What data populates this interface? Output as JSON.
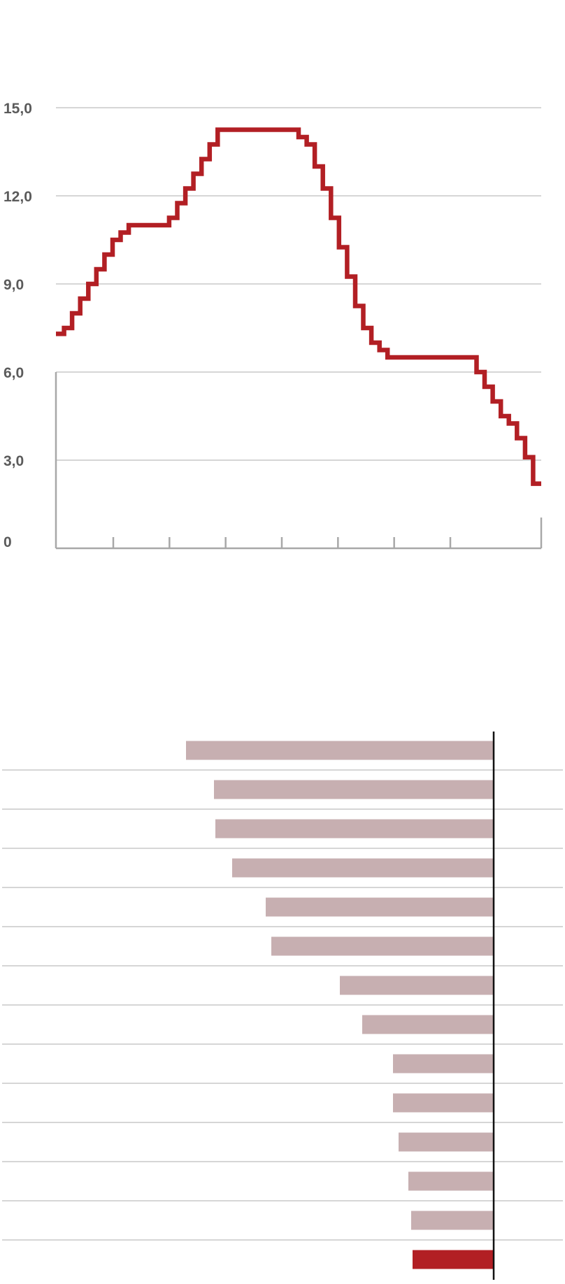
{
  "colors": {
    "line": "#b21f24",
    "grid": "#bdbdbd",
    "axis": "#a8a8a8",
    "tick_text": "#5b5b5b",
    "bar": "#c7afb1",
    "bar_highlight": "#b21f24",
    "zero_line": "#111111"
  },
  "chart_data": [
    {
      "type": "line",
      "step": true,
      "title": "",
      "xlabel": "",
      "ylabel": "",
      "ylim": [
        0,
        15
      ],
      "yticks": [
        {
          "value": 0,
          "label": "0"
        },
        {
          "value": 3,
          "label": "3,0"
        },
        {
          "value": 6,
          "label": "6,0"
        },
        {
          "value": 9,
          "label": "9,0"
        },
        {
          "value": 12,
          "label": "12,0"
        },
        {
          "value": 15,
          "label": "15,0"
        }
      ],
      "grid": true,
      "x_tick_count": 8,
      "series": [
        {
          "values": [
            7.3,
            7.5,
            8.0,
            8.5,
            9.0,
            9.5,
            10.0,
            10.5,
            10.75,
            11.0,
            11.0,
            11.0,
            11.0,
            11.0,
            11.25,
            11.75,
            12.25,
            12.75,
            13.25,
            13.75,
            14.25,
            14.25,
            14.25,
            14.25,
            14.25,
            14.25,
            14.25,
            14.25,
            14.25,
            14.25,
            14.0,
            13.75,
            13.0,
            12.25,
            11.25,
            10.25,
            9.25,
            8.25,
            7.5,
            7.0,
            6.75,
            6.5,
            6.5,
            6.5,
            6.5,
            6.5,
            6.5,
            6.5,
            6.5,
            6.5,
            6.5,
            6.5,
            6.0,
            5.5,
            5.0,
            4.5,
            4.25,
            3.75,
            3.1,
            2.2
          ]
        }
      ]
    },
    {
      "type": "bar",
      "orientation": "horizontal",
      "values": [
        -11.0,
        -10.0,
        -9.95,
        -9.35,
        -8.15,
        -7.95,
        -5.5,
        -4.7,
        -3.6,
        -3.6,
        -3.4,
        -3.05,
        -2.95,
        -2.9
      ],
      "highlight_index": 13,
      "xlim": [
        -17.6,
        2.5
      ],
      "grid": true
    }
  ]
}
